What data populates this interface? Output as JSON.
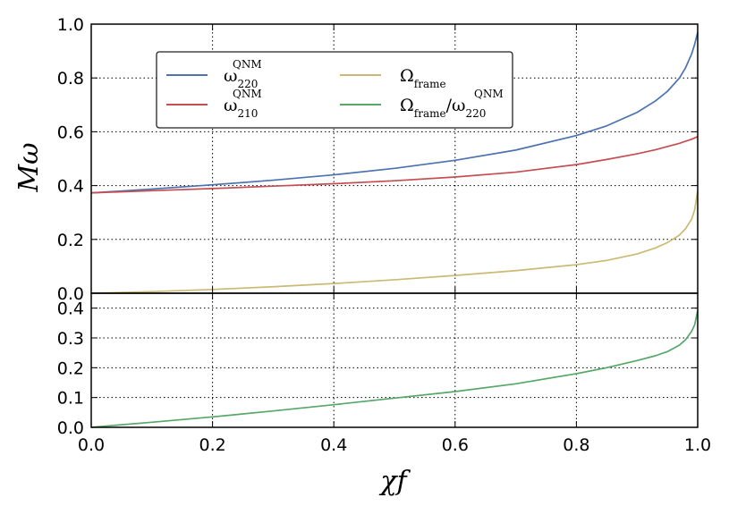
{
  "chart_data": [
    {
      "type": "line",
      "ylabel": "Mω",
      "xlim": [
        0.0,
        1.0
      ],
      "ylim": [
        0.0,
        1.0
      ],
      "xticks": [
        "0.0",
        "0.2",
        "0.4",
        "0.6",
        "0.8",
        "1.0"
      ],
      "yticks": [
        "0.0",
        "0.2",
        "0.4",
        "0.6",
        "0.8",
        "1.0"
      ],
      "grid": true,
      "legend_position": "upper-left",
      "x": [
        0.0,
        0.1,
        0.2,
        0.3,
        0.4,
        0.5,
        0.6,
        0.7,
        0.8,
        0.85,
        0.9,
        0.93,
        0.95,
        0.97,
        0.98,
        0.99,
        0.995,
        1.0
      ],
      "series": [
        {
          "name": "ω220QNM",
          "color": "#4C72B0",
          "values": [
            0.373,
            0.387,
            0.403,
            0.42,
            0.44,
            0.464,
            0.494,
            0.532,
            0.586,
            0.622,
            0.672,
            0.714,
            0.75,
            0.8,
            0.838,
            0.889,
            0.925,
            0.97
          ]
        },
        {
          "name": "ω210QNM",
          "color": "#C44E52",
          "values": [
            0.373,
            0.381,
            0.389,
            0.398,
            0.407,
            0.418,
            0.432,
            0.45,
            0.478,
            0.497,
            0.518,
            0.533,
            0.545,
            0.557,
            0.565,
            0.572,
            0.577,
            0.582
          ]
        },
        {
          "name": "Ωframe",
          "color": "#CCB974",
          "values": [
            0.0,
            0.006,
            0.014,
            0.024,
            0.036,
            0.05,
            0.066,
            0.084,
            0.106,
            0.122,
            0.146,
            0.168,
            0.188,
            0.216,
            0.24,
            0.275,
            0.31,
            0.38
          ]
        },
        {
          "name": "Ωframe/ω220QNM",
          "color": "#55A868"
        }
      ]
    },
    {
      "type": "line",
      "xlabel": "χf",
      "xlim": [
        0.0,
        1.0
      ],
      "ylim": [
        0.0,
        0.45
      ],
      "xticks": [
        "0.0",
        "0.2",
        "0.4",
        "0.6",
        "0.8",
        "1.0"
      ],
      "yticks": [
        "0.0",
        "0.1",
        "0.2",
        "0.3",
        "0.4"
      ],
      "grid": true,
      "x": [
        0.0,
        0.1,
        0.2,
        0.3,
        0.4,
        0.5,
        0.6,
        0.7,
        0.8,
        0.85,
        0.9,
        0.93,
        0.95,
        0.97,
        0.98,
        0.99,
        0.995,
        1.0
      ],
      "series": [
        {
          "name": "Ωframe/ω220QNM",
          "color": "#55A868",
          "values": [
            0.0,
            0.017,
            0.035,
            0.055,
            0.076,
            0.098,
            0.12,
            0.146,
            0.18,
            0.2,
            0.224,
            0.24,
            0.254,
            0.276,
            0.294,
            0.322,
            0.344,
            0.392
          ]
        }
      ]
    }
  ],
  "legend": {
    "entries": [
      {
        "base": "ω",
        "sub": "220",
        "sup": "QNM",
        "color": "#4C72B0"
      },
      {
        "base": "ω",
        "sub": "210",
        "sup": "QNM",
        "color": "#C44E52"
      },
      {
        "base": "Ω",
        "sub": "frame",
        "sup": "",
        "color": "#CCB974"
      },
      {
        "base": "Ω",
        "sub": "frame",
        "mid": "/ω",
        "sub2": "220",
        "sup": "QNM",
        "color": "#55A868"
      }
    ]
  }
}
